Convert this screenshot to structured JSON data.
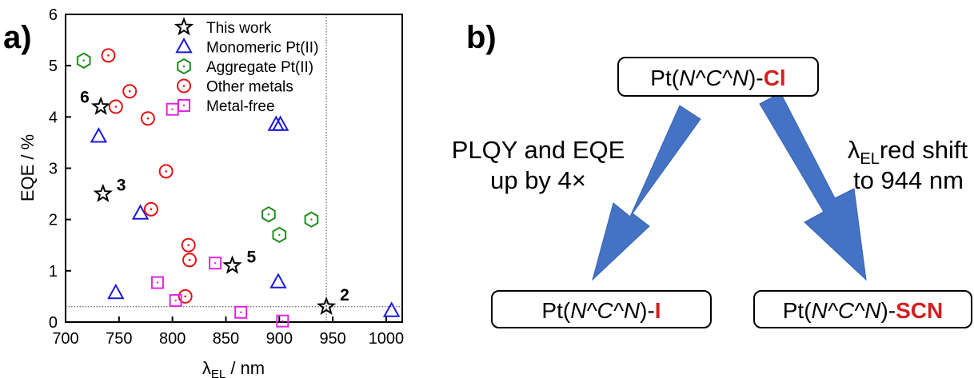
{
  "panel_a": {
    "label": "a)",
    "chart_data": {
      "type": "scatter",
      "xlabel_main": "λ",
      "xlabel_sub": "EL",
      "xlabel_unit": " / nm",
      "ylabel": "EQE / %",
      "xlim": [
        700,
        1015
      ],
      "ylim": [
        0,
        6
      ],
      "xticks": [
        700,
        750,
        800,
        850,
        900,
        950,
        1000
      ],
      "yticks": [
        0,
        1,
        2,
        3,
        4,
        5,
        6
      ],
      "grid": false,
      "legend_position": "top-right",
      "reference_lines": {
        "x": 944,
        "y": 0.3
      },
      "series": [
        {
          "name": "This work",
          "marker": "star",
          "color": "#000000",
          "points": [
            {
              "x": 733,
              "y": 4.2,
              "label": "6"
            },
            {
              "x": 735,
              "y": 2.5,
              "label": "3"
            },
            {
              "x": 856,
              "y": 1.1,
              "label": "5"
            },
            {
              "x": 944,
              "y": 0.3,
              "label": "2"
            }
          ]
        },
        {
          "name": "Monomeric Pt(II)",
          "marker": "triangle",
          "color": "#1a1adc",
          "points": [
            {
              "x": 731,
              "y": 3.62
            },
            {
              "x": 770,
              "y": 2.12
            },
            {
              "x": 747,
              "y": 0.57
            },
            {
              "x": 897,
              "y": 3.85
            },
            {
              "x": 901,
              "y": 3.85
            },
            {
              "x": 899,
              "y": 0.78
            },
            {
              "x": 1005,
              "y": 0.22
            }
          ]
        },
        {
          "name": "Aggregate Pt(II)",
          "marker": "hexagon",
          "color": "#1e8c1e",
          "points": [
            {
              "x": 717,
              "y": 5.1
            },
            {
              "x": 890,
              "y": 2.1
            },
            {
              "x": 900,
              "y": 1.7
            },
            {
              "x": 930,
              "y": 2.0
            }
          ]
        },
        {
          "name": "Other metals",
          "marker": "circle-dot",
          "color": "#e01414",
          "points": [
            {
              "x": 740,
              "y": 5.2
            },
            {
              "x": 747,
              "y": 4.2
            },
            {
              "x": 760,
              "y": 4.5
            },
            {
              "x": 777,
              "y": 3.97
            },
            {
              "x": 794,
              "y": 2.94
            },
            {
              "x": 780,
              "y": 2.2
            },
            {
              "x": 815,
              "y": 1.5
            },
            {
              "x": 816,
              "y": 1.21
            },
            {
              "x": 812,
              "y": 0.5
            }
          ]
        },
        {
          "name": "Metal-free",
          "marker": "square-dot",
          "color": "#e026e0",
          "points": [
            {
              "x": 800,
              "y": 4.15
            },
            {
              "x": 786,
              "y": 0.77
            },
            {
              "x": 803,
              "y": 0.42
            },
            {
              "x": 840,
              "y": 1.15
            },
            {
              "x": 864,
              "y": 0.19
            },
            {
              "x": 903,
              "y": 0.02
            }
          ]
        }
      ]
    }
  },
  "panel_b": {
    "label": "b)",
    "top_box": {
      "pre": "Pt(",
      "ital": "N^C^N",
      "post": ")-",
      "suffix": "Cl"
    },
    "left_box": {
      "pre": "Pt(",
      "ital": "N^C^N",
      "post": ")-",
      "suffix": "I"
    },
    "right_box": {
      "pre": "Pt(",
      "ital": "N^C^N",
      "post": ")-",
      "suffix": "SCN"
    },
    "left_text": {
      "line1": "PLQY and EQE",
      "line2": "up by 4×"
    },
    "right_text": {
      "lambda": "λ",
      "sub": "EL",
      "rest": "red shift",
      "line2": "to 944 nm"
    },
    "colors": {
      "arrow": "#4472c4",
      "highlight": "#d42020"
    }
  }
}
